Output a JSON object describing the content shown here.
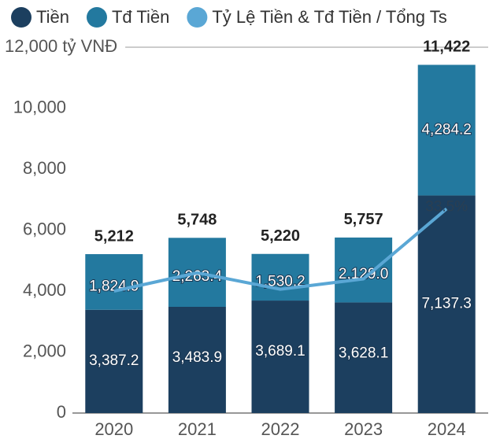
{
  "chart_data": {
    "type": "bar",
    "stacked": true,
    "categories": [
      "2020",
      "2021",
      "2022",
      "2023",
      "2024"
    ],
    "series": [
      {
        "name": "Tiền",
        "color": "#1c3f5f",
        "values": [
          3387.2,
          3483.9,
          3689.1,
          3628.1,
          7137.3
        ],
        "value_labels": [
          "3,387.2",
          "3,483.9",
          "3,689.1",
          "3,628.1",
          "7,137.3"
        ]
      },
      {
        "name": "Tđ Tiền",
        "color": "#23799f",
        "values": [
          1824.9,
          2263.4,
          1530.2,
          2129.0,
          4284.2
        ],
        "value_labels": [
          "1,824.9",
          "2,263.4",
          "1,530.2",
          "2,129.0",
          "4,284.2"
        ]
      },
      {
        "name": "Tỷ Lệ Tiền & Tđ Tiền / Tổng Ts",
        "color": "#5aa7d5",
        "type": "line",
        "axis": "y2",
        "values": [
          20,
          23,
          20.3,
          22,
          33.5
        ],
        "value_labels": [
          null,
          null,
          null,
          null,
          "33.5%"
        ]
      }
    ],
    "totals": [
      5212,
      5748,
      5220,
      5757,
      11422
    ],
    "total_labels": [
      "5,212",
      "5,748",
      "5,220",
      "5,757",
      "11,422"
    ],
    "ylim": [
      0,
      12000
    ],
    "yticks": [
      0,
      {
        "value": 2000,
        "label": "2,000"
      },
      {
        "value": 4000,
        "label": "4,000"
      },
      {
        "value": 6000,
        "label": "6,000"
      },
      {
        "value": 8000,
        "label": "8,000"
      },
      {
        "value": 10000,
        "label": "10,000"
      },
      {
        "value": 12000,
        "label": "12,000 tỷ VNĐ"
      }
    ],
    "y2lim": [
      0,
      60
    ],
    "grid": false,
    "legend": "top"
  }
}
